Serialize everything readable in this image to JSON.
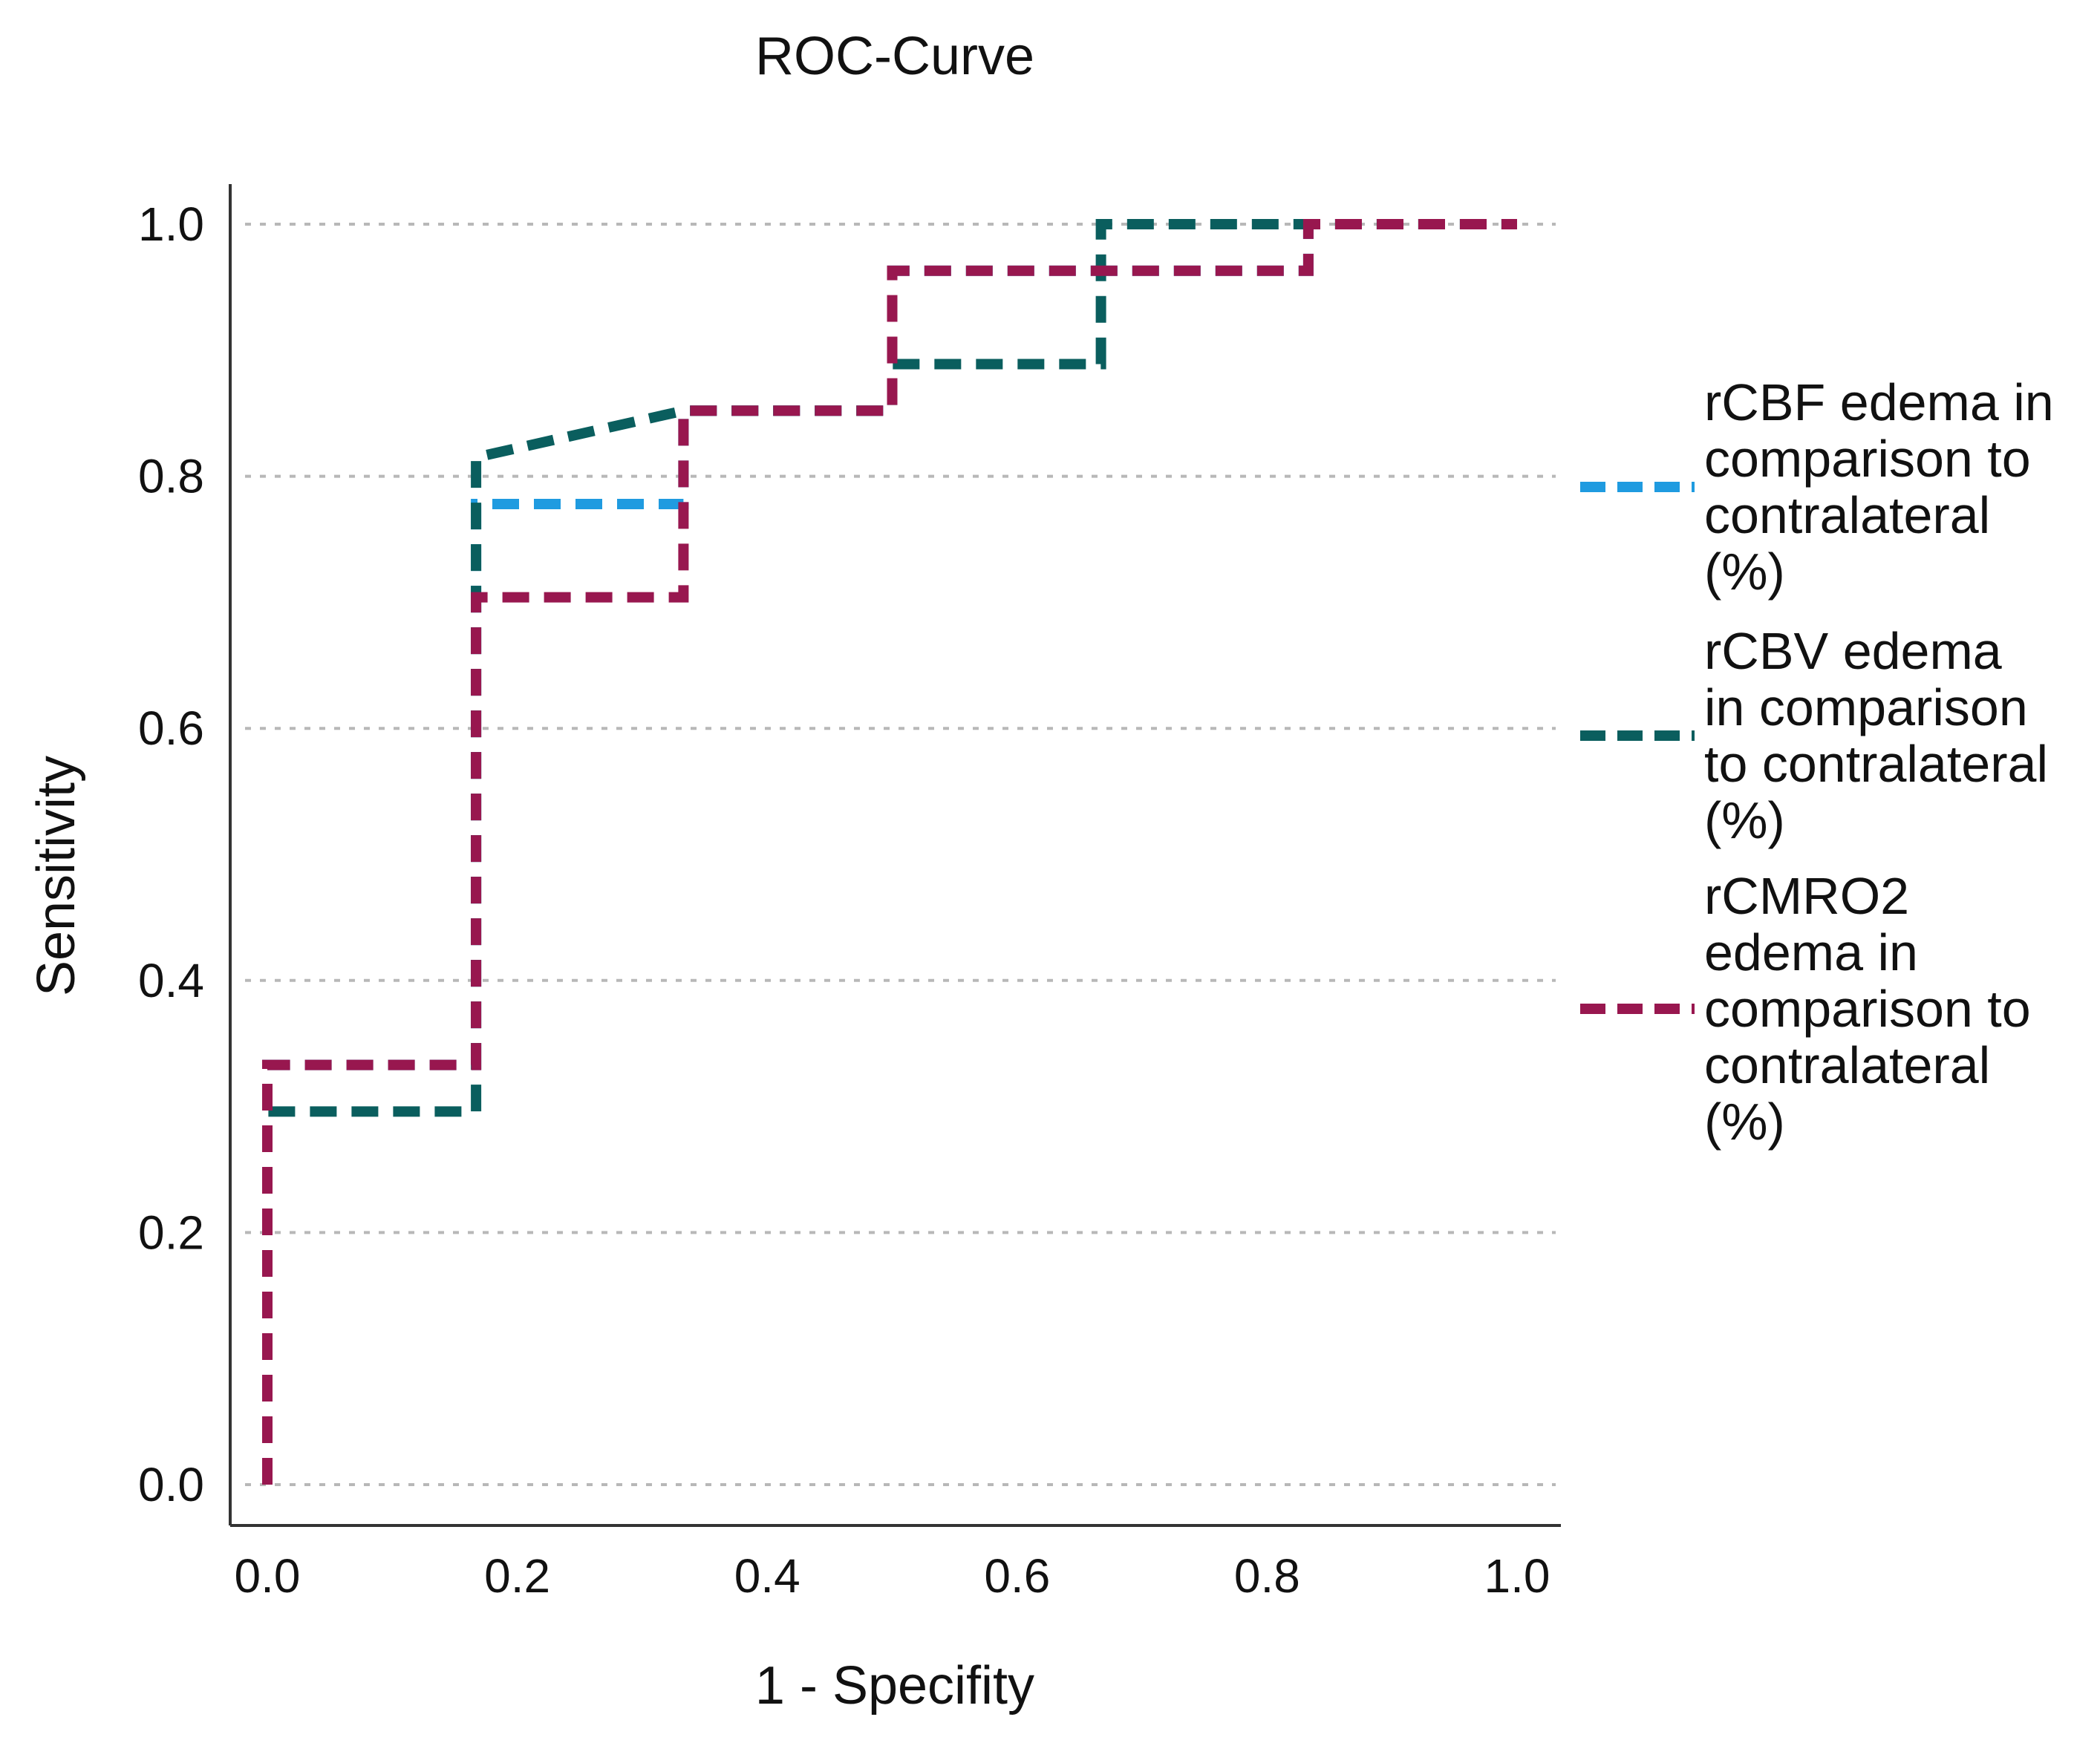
{
  "chart_data": {
    "type": "line",
    "title": "ROC-Curve",
    "xlabel": "1 - Specifity",
    "ylabel": "Sensitivity",
    "xlim": [
      0.0,
      1.0
    ],
    "ylim": [
      0.0,
      1.0
    ],
    "x_ticks": [
      "0.0",
      "0.2",
      "0.4",
      "0.6",
      "0.8",
      "1.0"
    ],
    "y_ticks": [
      "0.0",
      "0.2",
      "0.4",
      "0.6",
      "0.8",
      "1.0"
    ],
    "grid": "horizontal dotted",
    "legend_position": "right",
    "line_style": "dashed",
    "series": [
      {
        "name": "rCBF edema in comparison to contralateral (%)",
        "legend_lines": [
          "rCBF edema in",
          "comparison to",
          "contralateral",
          "(%)"
        ],
        "color": "#1f9be0",
        "x": [
          0.0,
          0.0,
          0.167,
          0.167,
          0.167,
          0.333,
          0.333,
          0.5,
          0.5,
          0.667,
          0.667,
          0.833,
          0.833,
          1.0
        ],
        "y": [
          0.0,
          0.333,
          0.333,
          0.704,
          0.778,
          0.778,
          0.852,
          0.852,
          0.963,
          0.963,
          0.963,
          0.963,
          1.0,
          1.0
        ]
      },
      {
        "name": "rCBV edema in comparison to contralateral (%)",
        "legend_lines": [
          "rCBV edema",
          "in comparison",
          "to contralateral",
          "(%)"
        ],
        "color": "#0a5e5e",
        "x": [
          0.0,
          0.0,
          0.167,
          0.167,
          0.333,
          0.5,
          0.5,
          0.667,
          0.667,
          1.0
        ],
        "y": [
          0.0,
          0.296,
          0.296,
          0.815,
          0.852,
          0.852,
          0.889,
          0.889,
          1.0,
          1.0
        ]
      },
      {
        "name": "rCMRO2 edema in comparison to contralateral (%)",
        "legend_lines": [
          "rCMRO2",
          "edema  in",
          "comparison to",
          "contralateral",
          "(%)"
        ],
        "color": "#98174f",
        "x": [
          0.0,
          0.0,
          0.167,
          0.167,
          0.333,
          0.333,
          0.5,
          0.5,
          0.833,
          0.833,
          1.0
        ],
        "y": [
          0.0,
          0.333,
          0.333,
          0.704,
          0.704,
          0.852,
          0.852,
          0.963,
          0.963,
          1.0,
          1.0
        ]
      }
    ]
  }
}
